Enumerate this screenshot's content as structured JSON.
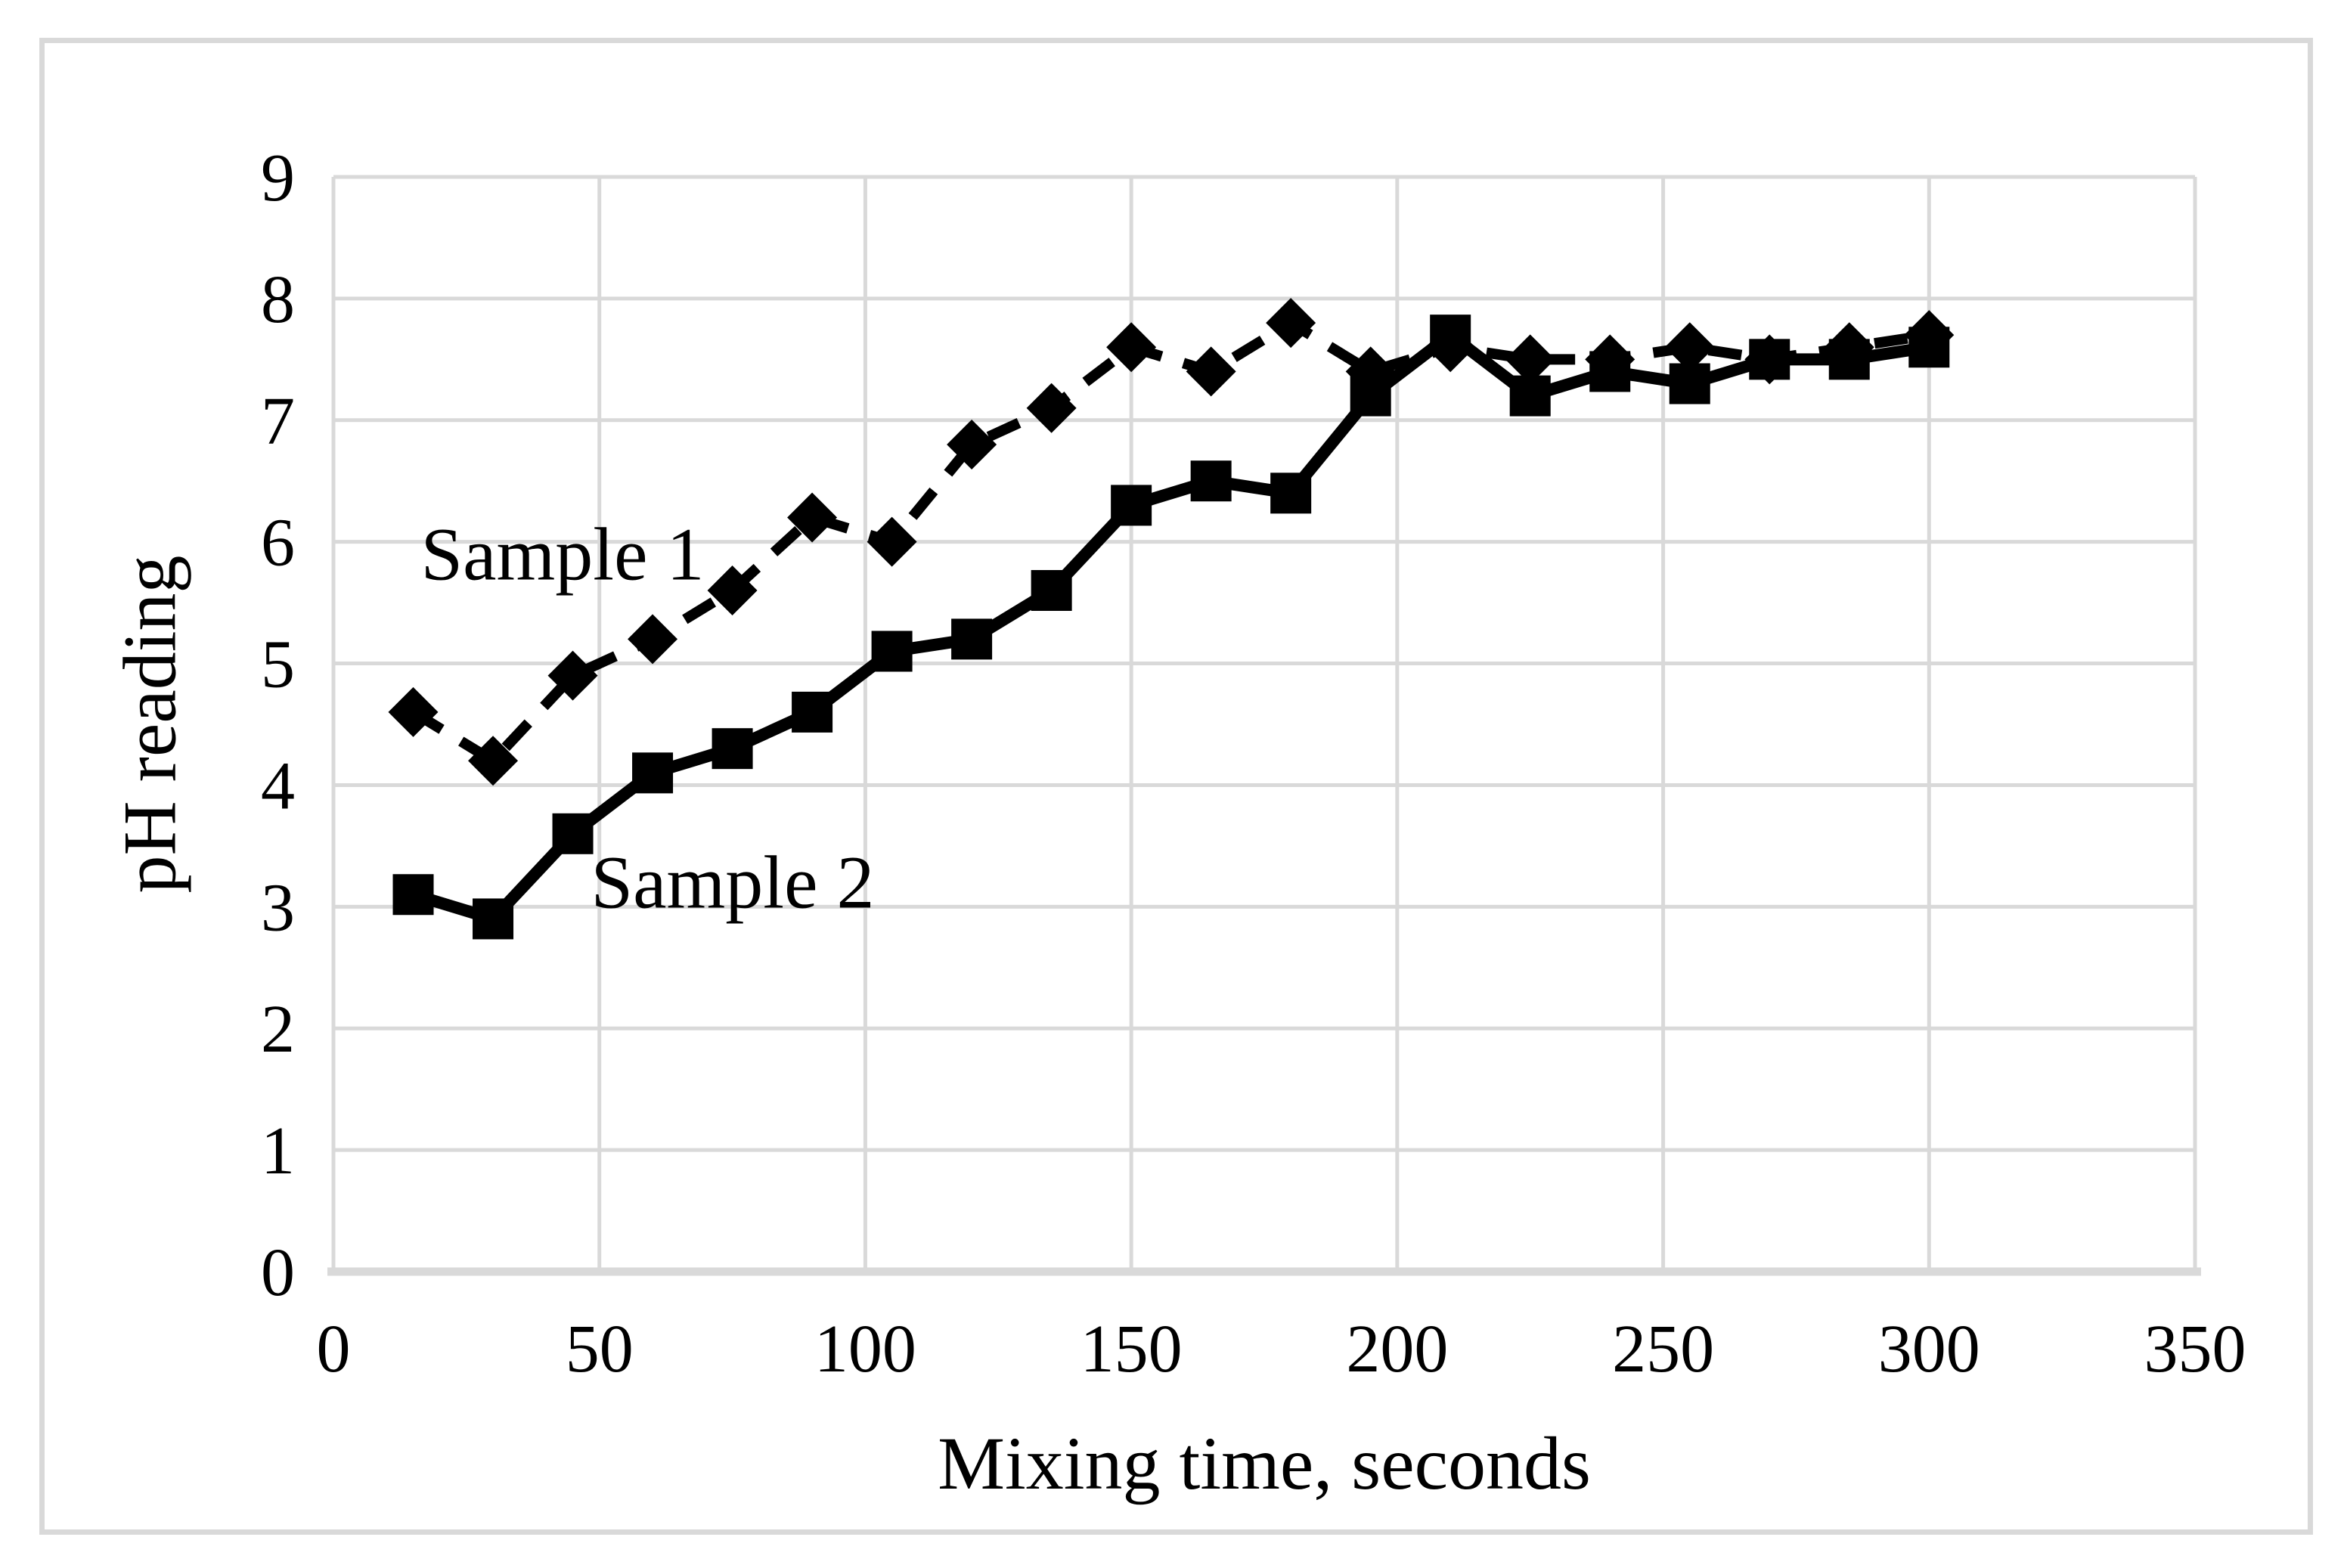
{
  "page": {
    "background": "#ffffff",
    "border_color": "#d9d9d9"
  },
  "chart_data": {
    "type": "line",
    "title": "",
    "xlabel": "Mixing time, seconds",
    "ylabel": "pH reading",
    "xlim": [
      0,
      350
    ],
    "ylim": [
      0,
      9
    ],
    "x_ticks": [
      0,
      50,
      100,
      150,
      200,
      250,
      300,
      350
    ],
    "y_ticks": [
      0,
      1,
      2,
      3,
      4,
      5,
      6,
      7,
      8,
      9
    ],
    "grid": true,
    "legend_position": "inline-annotations",
    "x": [
      15,
      30,
      45,
      60,
      75,
      90,
      105,
      120,
      135,
      150,
      165,
      180,
      195,
      210,
      225,
      240,
      255,
      270,
      285,
      300
    ],
    "series": [
      {
        "name": "Sample 1",
        "marker": "diamond",
        "line_style": "dashed",
        "color": "#000000",
        "values": [
          4.6,
          4.2,
          4.9,
          5.2,
          5.6,
          6.2,
          6.0,
          6.8,
          7.1,
          7.6,
          7.4,
          7.8,
          7.4,
          7.6,
          7.5,
          7.5,
          7.6,
          7.5,
          7.6,
          7.7
        ]
      },
      {
        "name": "Sample 2",
        "marker": "square",
        "line_style": "solid",
        "color": "#000000",
        "values": [
          3.1,
          2.9,
          3.6,
          4.1,
          4.3,
          4.6,
          5.1,
          5.2,
          5.6,
          6.3,
          6.5,
          6.4,
          7.2,
          7.7,
          7.2,
          7.4,
          7.3,
          7.5,
          7.5,
          7.6
        ]
      }
    ],
    "annotations": [
      {
        "text": "Sample 1",
        "x": 43,
        "y": 5.9
      },
      {
        "text": "Sample 2",
        "x": 75,
        "y": 3.2
      }
    ],
    "colors": {
      "grid": "#d9d9d9",
      "axis": "#d9d9d9",
      "ink": "#000000"
    }
  }
}
